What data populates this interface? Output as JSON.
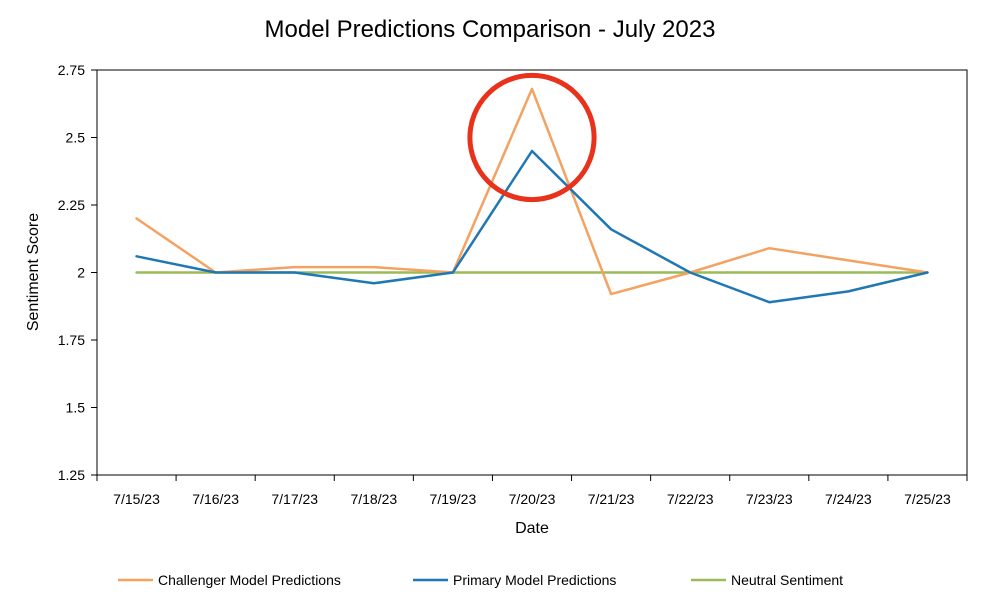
{
  "chart_data": {
    "type": "line",
    "title": "Model Predictions Comparison - July 2023",
    "xlabel": "Date",
    "ylabel": "Sentiment Score",
    "categories": [
      "7/15/23",
      "7/16/23",
      "7/17/23",
      "7/18/23",
      "7/19/23",
      "7/20/23",
      "7/21/23",
      "7/22/23",
      "7/23/23",
      "7/24/23",
      "7/25/23"
    ],
    "ylim": [
      1.25,
      2.75
    ],
    "yticks": [
      "2.75",
      "2.5",
      "2.25",
      "2",
      "1.75",
      "1.5",
      "1.25"
    ],
    "grid": false,
    "legend_position": "bottom",
    "series": [
      {
        "name": "Challenger Model Predictions",
        "color": "#F4A261",
        "values": [
          2.2,
          2.0,
          2.02,
          2.02,
          2.0,
          2.68,
          1.92,
          2.0,
          2.09,
          2.045,
          2.0
        ]
      },
      {
        "name": "Primary Model Predictions",
        "color": "#1F77B4",
        "values": [
          2.06,
          2.0,
          2.0,
          1.96,
          2.0,
          2.45,
          2.16,
          2.0,
          1.89,
          1.93,
          2.0
        ]
      },
      {
        "name": "Neutral Sentiment",
        "color": "#9BBB59",
        "values": [
          2.0,
          2.0,
          2.0,
          2.0,
          2.0,
          2.0,
          2.0,
          2.0,
          2.0,
          2.0,
          2.0
        ]
      }
    ],
    "annotation": {
      "shape": "circle",
      "color": "#E8321C",
      "category": "7/20/23",
      "y_center": 2.5,
      "y_radius": 0.23
    }
  }
}
